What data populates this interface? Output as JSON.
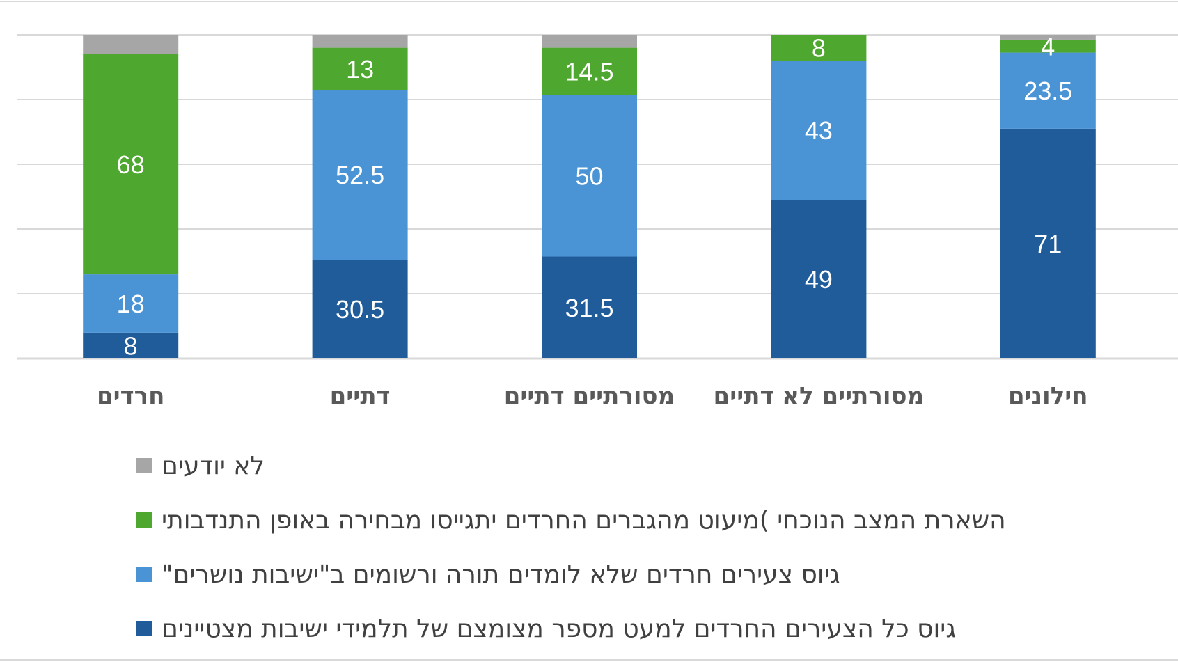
{
  "chart_data": {
    "type": "bar",
    "stacked": true,
    "categories": [
      "חרדים",
      "דתיים",
      "מסורתיים דתיים",
      "מסורתיים לא דתיים",
      "חילונים"
    ],
    "ylim": [
      0,
      100
    ],
    "grid": true,
    "legend_position": "bottom",
    "series": [
      {
        "name": "גיוס כל הצעירים החרדים למעט מספר מצומצם של תלמידי ישיבות מצטיינים",
        "color": "#1f5c99",
        "values": [
          8,
          30.5,
          31.5,
          49,
          71
        ],
        "labels": [
          "8",
          "30.5",
          "31.5",
          "49",
          "71"
        ]
      },
      {
        "name": "גיוס צעירים חרדים שלא לומדים תורה ורשומים ב\"ישיבות נושרים\"",
        "color": "#4a94d6",
        "values": [
          18,
          52.5,
          50,
          43,
          23.5
        ],
        "labels": [
          "18",
          "52.5",
          "50",
          "43",
          "23.5"
        ]
      },
      {
        "name": "השארת המצב הנוכחי )מיעוט מהגברים החרדים יתגייסו מבחירה באופן התנדבותי",
        "color": "#4ea72e",
        "values": [
          68,
          13,
          14.5,
          8,
          4
        ],
        "labels": [
          "68",
          "13",
          "14.5",
          "8",
          "4"
        ]
      },
      {
        "name": "לא יודעים",
        "color": "#a6a6a6",
        "values": [
          6,
          4,
          4,
          0,
          1.5
        ],
        "labels": [
          "",
          "",
          "",
          "",
          ""
        ]
      }
    ]
  }
}
